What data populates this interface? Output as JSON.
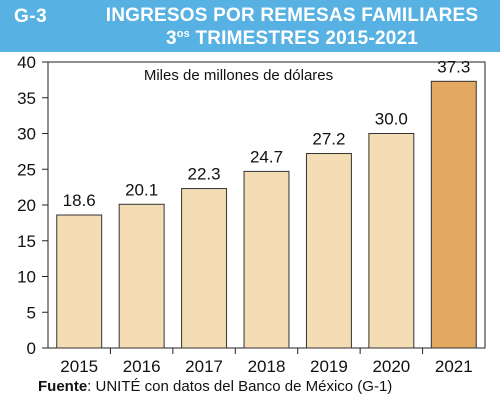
{
  "header": {
    "chart_id": "G-3",
    "title_line1": "INGRESOS POR REMESAS FAMILIARES",
    "title_line2_main": "3",
    "title_line2_sup": "os",
    "title_line2_rest": " TRIMESTRES 2015-2021"
  },
  "source": {
    "label": "Fuente",
    "text": ": UNITÉ con datos del Banco de México (G-1)"
  },
  "colors": {
    "header_bg": "#57b2e3",
    "bar": "#f4dcb4",
    "bar_highlight": "#e3a961",
    "bar_stroke": "#333333"
  },
  "chart_data": {
    "type": "bar",
    "title": "INGRESOS POR REMESAS FAMILIARES 3os TRIMESTRES 2015-2021",
    "subtitle": "Miles de millones de dólares",
    "categories": [
      "2015",
      "2016",
      "2017",
      "2018",
      "2019",
      "2020",
      "2021"
    ],
    "values": [
      18.6,
      20.1,
      22.3,
      24.7,
      27.2,
      30.0,
      37.3
    ],
    "value_labels": [
      "18.6",
      "20.1",
      "22.3",
      "24.7",
      "27.2",
      "30.0",
      "37.3"
    ],
    "highlight_index": 6,
    "ylim": [
      0,
      40
    ],
    "yticks": [
      0,
      5,
      10,
      15,
      20,
      25,
      30,
      35,
      40
    ],
    "xlabel": "",
    "ylabel": "",
    "grid": false,
    "legend": "none"
  }
}
